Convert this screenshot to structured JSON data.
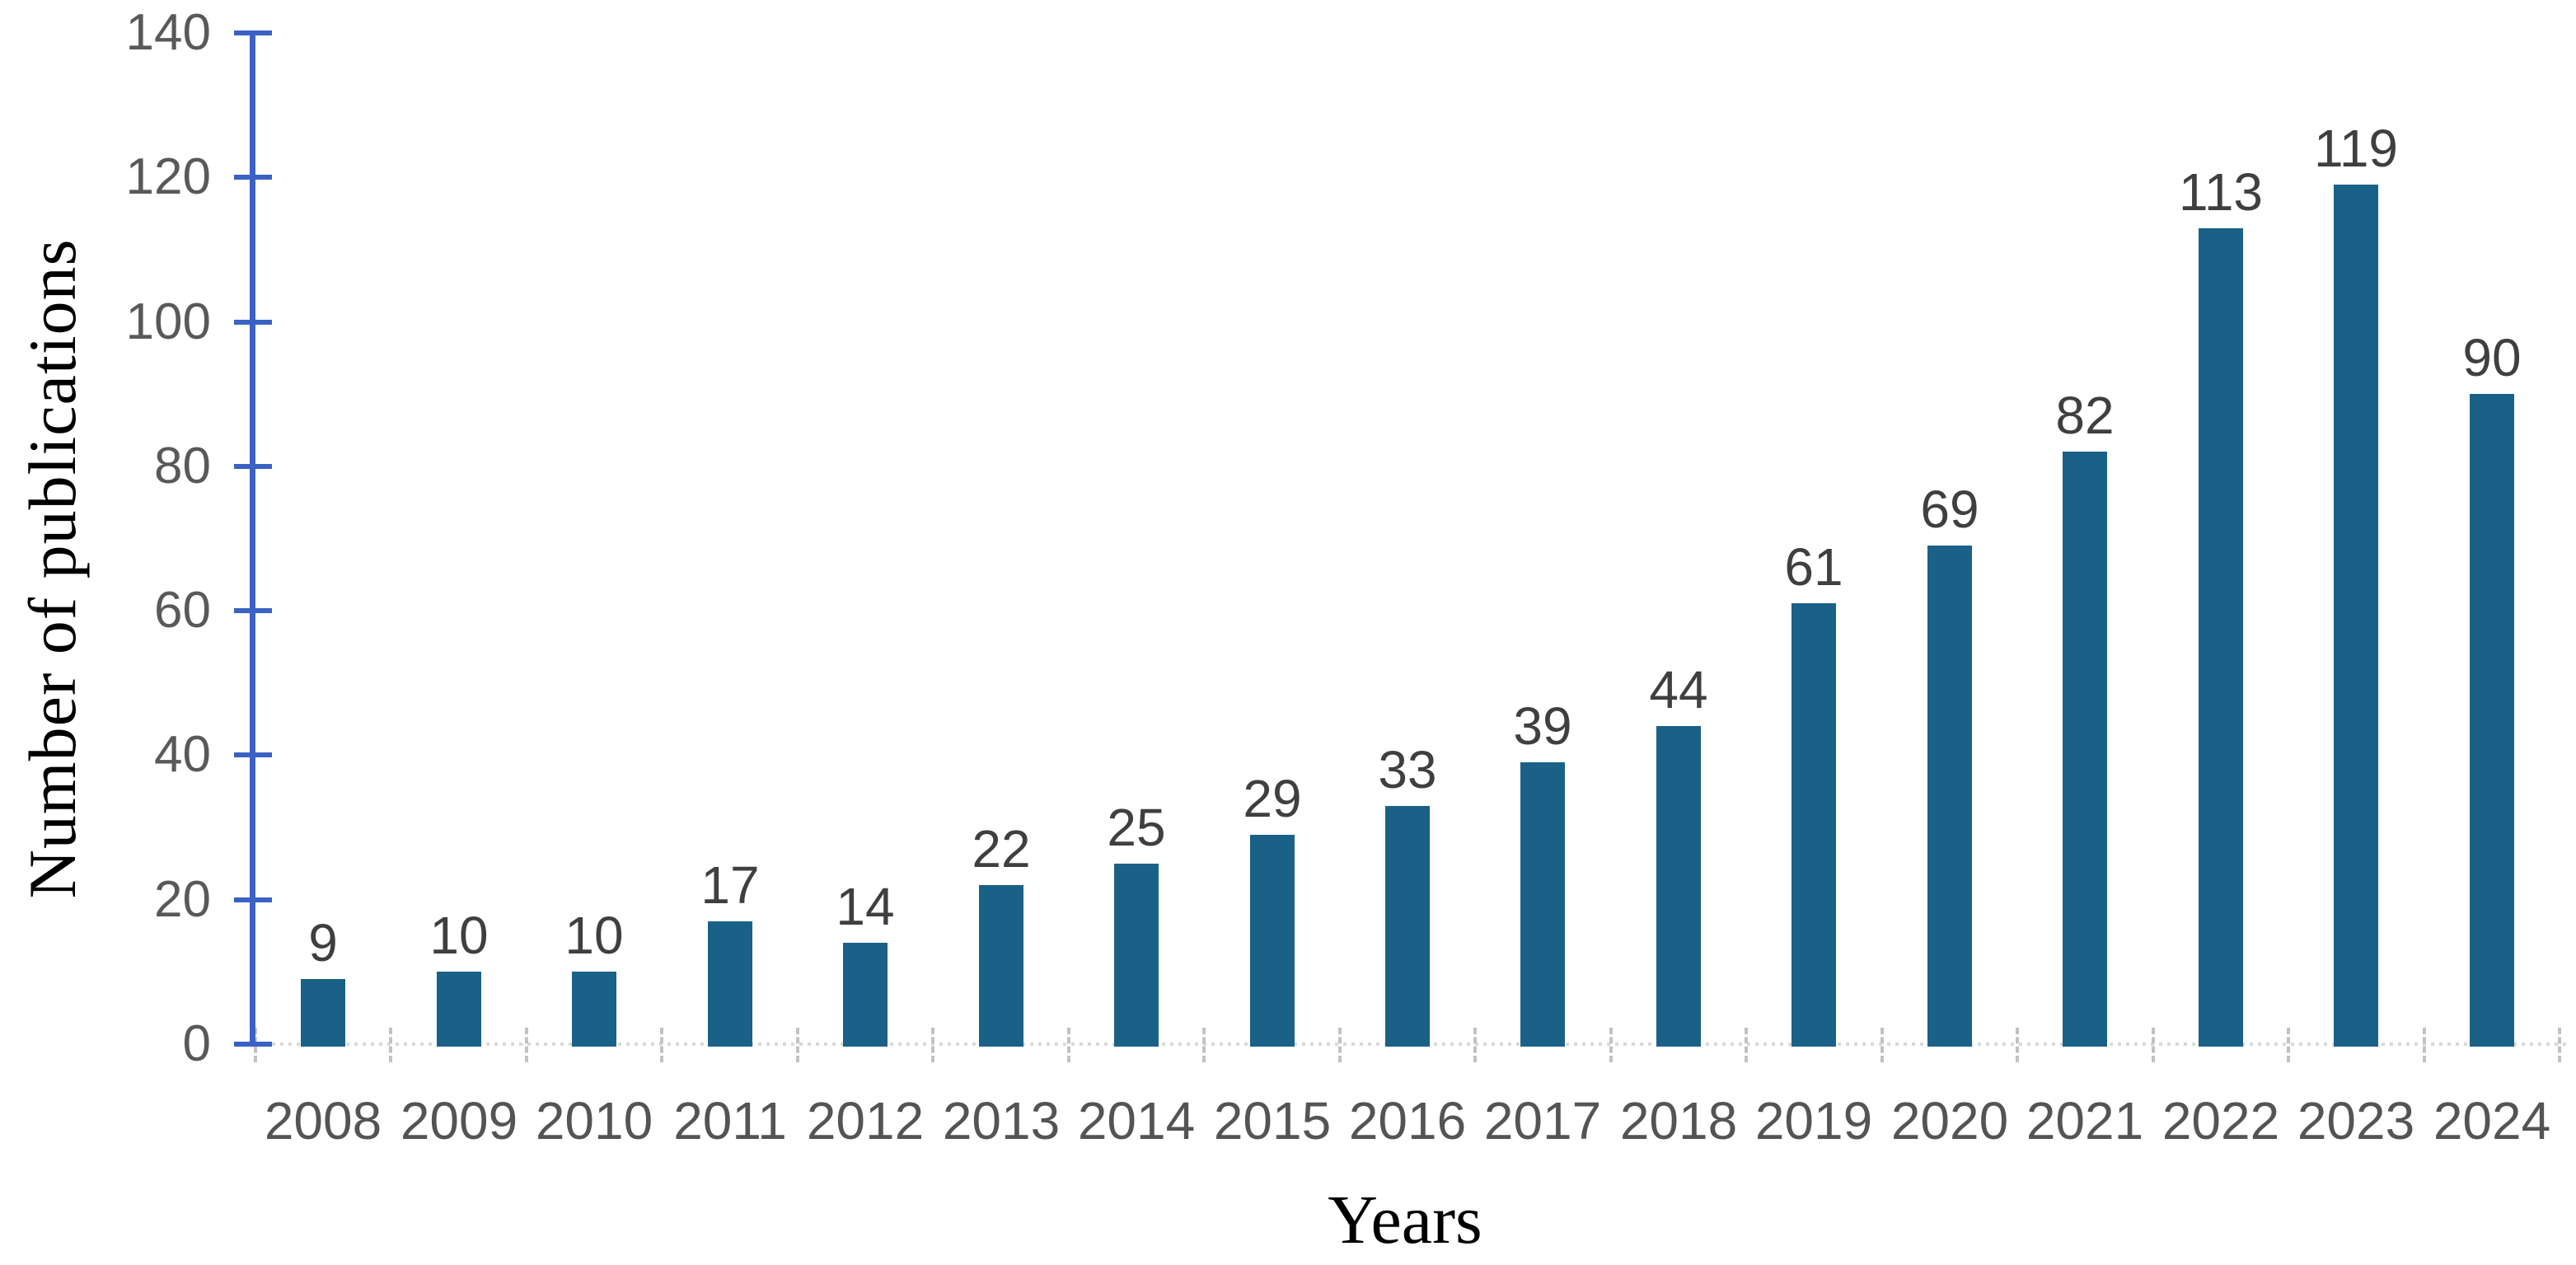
{
  "chart_data": {
    "type": "bar",
    "xlabel": "Years",
    "ylabel": "Number of publications",
    "categories": [
      "2008",
      "2009",
      "2010",
      "2011",
      "2012",
      "2013",
      "2014",
      "2015",
      "2016",
      "2017",
      "2018",
      "2019",
      "2020",
      "2021",
      "2022",
      "2023",
      "2024"
    ],
    "values": [
      9,
      10,
      10,
      17,
      14,
      22,
      25,
      29,
      33,
      39,
      44,
      61,
      69,
      82,
      113,
      119,
      90
    ],
    "ylim": [
      0,
      140
    ],
    "yticks": [
      0,
      20,
      40,
      60,
      80,
      100,
      120,
      140
    ],
    "grid": false,
    "legend_position": "none",
    "colors": {
      "bar": "#1A6188",
      "y_axis": "#3A62C4",
      "y_tick_label": "#595959",
      "data_label": "#3F3F3F",
      "x_category_label": "#545454",
      "x_axis_line": "#D9D9D9",
      "x_tick": "#C2C2C2",
      "axis_title": "#000000"
    }
  }
}
